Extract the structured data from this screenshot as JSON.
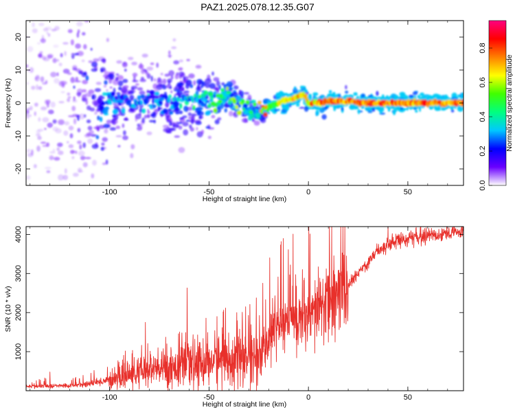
{
  "title": "PAZ1.2025.078.12.35.G07",
  "chart_data": [
    {
      "type": "heatmap",
      "xlabel": "Height of straight line (km)",
      "ylabel": "Frequency (Hz)",
      "xlim": [
        -142,
        78
      ],
      "ylim": [
        -25,
        25
      ],
      "xticks": [
        -100,
        -50,
        0,
        50
      ],
      "xtick_labels": [
        "-100",
        "-50",
        "0",
        "50"
      ],
      "yticks": [
        20,
        10,
        0,
        -10,
        -20
      ],
      "ytick_labels": [
        "20",
        "10",
        "0",
        "-10",
        "-20"
      ],
      "colorbar": {
        "label": "Normalized spectral amplitude",
        "range": [
          0,
          0.96
        ],
        "ticks": [
          0.0,
          0.2,
          0.4,
          0.6,
          0.8
        ],
        "tick_labels": [
          "0.0",
          "0.2",
          "0.4",
          "0.6",
          "0.8"
        ],
        "colormap": [
          "#ffffff",
          "#6a00ff",
          "#0000ff",
          "#00c8ff",
          "#00ff80",
          "#40ff00",
          "#ffff00",
          "#ff8000",
          "#ff0000",
          "#ff0080"
        ]
      },
      "ridge": {
        "x": [
          -142,
          -120,
          -100,
          -85,
          -70,
          -60,
          -50,
          -45,
          -40,
          -35,
          -30,
          -25,
          -20,
          -15,
          -10,
          -5,
          -2,
          0,
          5,
          10,
          15,
          20,
          30,
          50,
          78
        ],
        "y": [
          0,
          0,
          0.5,
          1,
          0,
          0.5,
          0,
          1,
          2,
          0,
          -2,
          -3,
          -1,
          0,
          1,
          2,
          2.5,
          0,
          0,
          0.5,
          0.5,
          0.5,
          0,
          0,
          0
        ],
        "amplitude": [
          0.05,
          0.08,
          0.2,
          0.2,
          0.2,
          0.25,
          0.3,
          0.3,
          0.35,
          0.35,
          0.4,
          0.35,
          0.55,
          0.65,
          0.7,
          0.75,
          0.7,
          0.8,
          0.8,
          0.85,
          0.85,
          0.9,
          0.9,
          0.85,
          0.85
        ],
        "spread": [
          25,
          24,
          10,
          8,
          8,
          7,
          6,
          4,
          3,
          3,
          2.5,
          2,
          2,
          1.8,
          1.5,
          1.5,
          1.5,
          1.5,
          1.5,
          1.5,
          1.5,
          1.5,
          1.5,
          1.5,
          1.5
        ]
      }
    },
    {
      "type": "line",
      "xlabel": "Height of straight line (km)",
      "ylabel": "SNR (10 * v/v)",
      "xlim": [
        -142,
        78
      ],
      "ylim": [
        0,
        4200
      ],
      "xticks": [
        -100,
        -50,
        0,
        50
      ],
      "xtick_labels": [
        "-100",
        "-50",
        "0",
        "50"
      ],
      "yticks": [
        1000,
        2000,
        3000,
        4000
      ],
      "ytick_labels": [
        "1000",
        "2000",
        "3000",
        "4000"
      ],
      "color": "#e8302b",
      "series_trend": {
        "x": [
          -142,
          -120,
          -110,
          -100,
          -90,
          -80,
          -70,
          -60,
          -50,
          -40,
          -30,
          -25,
          -22,
          -20,
          -15,
          -10,
          -5,
          0,
          5,
          10,
          15,
          20,
          25,
          30,
          35,
          40,
          45,
          50,
          60,
          70,
          78
        ],
        "y": [
          110,
          130,
          180,
          280,
          400,
          500,
          600,
          650,
          750,
          800,
          850,
          900,
          900,
          1400,
          1750,
          1800,
          1900,
          1700,
          2100,
          2300,
          2450,
          2700,
          3000,
          3300,
          3600,
          3750,
          3850,
          3900,
          3980,
          4030,
          4060
        ]
      },
      "peaks": [
        {
          "x": -130,
          "y": 480
        },
        {
          "x": -82,
          "y": 1750
        },
        {
          "x": -61,
          "y": 2630
        },
        {
          "x": -46,
          "y": 1900
        },
        {
          "x": -36,
          "y": 2000
        },
        {
          "x": -23,
          "y": 2750
        },
        {
          "x": -9,
          "y": 3220
        },
        {
          "x": -3,
          "y": 3100
        },
        {
          "x": 5,
          "y": 3170
        },
        {
          "x": 15,
          "y": 3080
        },
        {
          "x": 40,
          "y": 4220
        }
      ]
    }
  ]
}
